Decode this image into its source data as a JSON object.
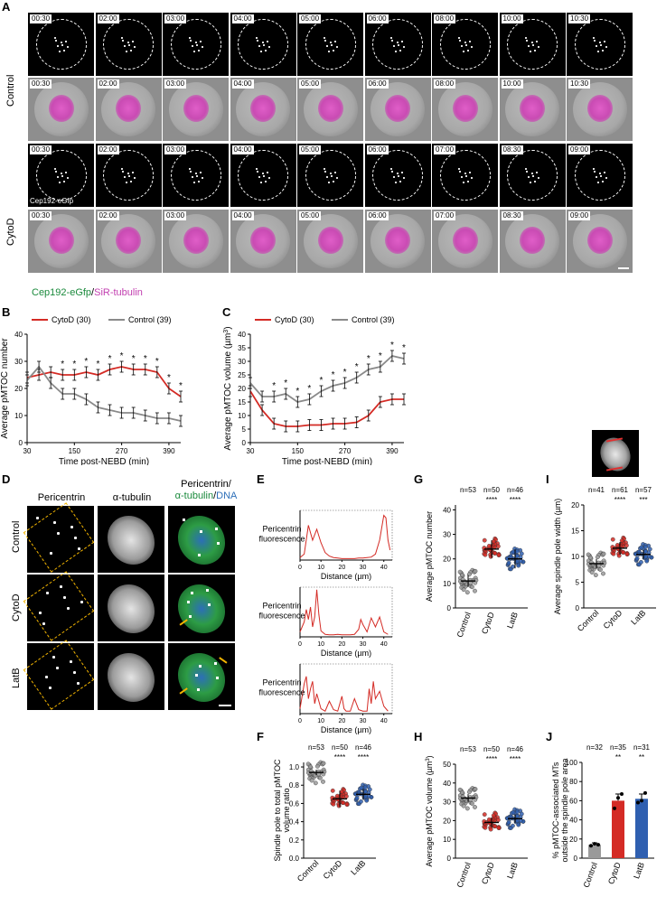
{
  "panel_letters": {
    "A": "A",
    "B": "B",
    "C": "C",
    "D": "D",
    "E": "E",
    "F": "F",
    "G": "G",
    "H": "H",
    "I": "I",
    "J": "J"
  },
  "panel_a": {
    "row_labels": {
      "control": "Control",
      "cytod": "CytoD"
    },
    "control_times": [
      "00:30",
      "02:00",
      "03:00",
      "04:00",
      "05:00",
      "06:00",
      "08:00",
      "10:00",
      "10:30"
    ],
    "cytod_times": [
      "00:30",
      "02:00",
      "03:00",
      "04:00",
      "05:00",
      "06:00",
      "07:00",
      "08:30",
      "09:00"
    ],
    "channel_label": "Cep192-eGfp",
    "legend_green": "Cep192-eGfp",
    "legend_sep": "/",
    "legend_magenta": "SiR-tubulin",
    "green_color": "#1a8a3c",
    "magenta_color": "#c23fb0"
  },
  "chart_data": [
    {
      "panel": "B",
      "type": "line",
      "ylabel": "Average pMTOC number",
      "xlabel": "Time post-NEBD (min)",
      "xticks": [
        30,
        150,
        270,
        390
      ],
      "yticks": [
        0,
        10,
        20,
        30,
        40
      ],
      "ylim": [
        0,
        40
      ],
      "xlim": [
        30,
        420
      ],
      "legend": [
        "CytoD (30)",
        "Control (39)"
      ],
      "x": [
        30,
        60,
        90,
        120,
        150,
        180,
        210,
        240,
        270,
        300,
        330,
        360,
        390,
        420
      ],
      "series": [
        {
          "name": "CytoD (30)",
          "color": "#d42b25",
          "values": [
            24,
            25,
            26,
            25,
            25,
            26,
            25,
            27,
            28,
            27,
            27,
            26,
            20,
            17
          ]
        },
        {
          "name": "Control (39)",
          "color": "#8a8a8a",
          "values": [
            23,
            28,
            22,
            18,
            18,
            16,
            13,
            12,
            11,
            11,
            10,
            9,
            9,
            8
          ]
        }
      ],
      "stars": [
        150,
        180,
        210,
        240,
        270,
        300,
        330,
        360,
        390,
        420,
        120
      ],
      "star_label": "*"
    },
    {
      "panel": "C",
      "type": "line",
      "ylabel": "Average pMTOC volume (µm³)",
      "ylabel_main": "Average pMTOC volume (µm",
      "ylabel_sup": "3",
      "ylabel_close": ")",
      "xlabel": "Time post-NEBD (min)",
      "xticks": [
        30,
        150,
        270,
        390
      ],
      "yticks": [
        0,
        5,
        10,
        15,
        20,
        25,
        30,
        35,
        40
      ],
      "ylim": [
        0,
        40
      ],
      "xlim": [
        30,
        420
      ],
      "legend": [
        "CytoD (30)",
        "Control (39)"
      ],
      "x": [
        30,
        60,
        90,
        120,
        150,
        180,
        210,
        240,
        270,
        300,
        330,
        360,
        390,
        420
      ],
      "series": [
        {
          "name": "CytoD (30)",
          "color": "#d42b25",
          "values": [
            19,
            12,
            7,
            6,
            6,
            6.5,
            6.5,
            7,
            7,
            7.5,
            10,
            15,
            16,
            16
          ]
        },
        {
          "name": "Control (39)",
          "color": "#8a8a8a",
          "values": [
            22,
            17,
            17,
            18,
            15,
            16,
            19,
            21,
            22,
            24,
            27,
            28,
            32,
            31
          ]
        }
      ],
      "stars": [
        90,
        120,
        150,
        180,
        210,
        240,
        270,
        300,
        330,
        360,
        390,
        420
      ],
      "star_label": "*"
    },
    {
      "panel": "E",
      "type": "line",
      "ylabel": "Pericentrin fluorescence",
      "ylabel_l1": "Pericentrin",
      "ylabel_l2": "fluorescence",
      "xlabel": "Distance (µm)",
      "xticks": [
        0,
        10,
        20,
        30,
        40
      ],
      "profiles": [
        {
          "row": "Control",
          "x": [
            0,
            2,
            4,
            6,
            8,
            10,
            12,
            14,
            16,
            18,
            20,
            22,
            24,
            26,
            28,
            30,
            32,
            34,
            36,
            38,
            40,
            41,
            42,
            43
          ],
          "y": [
            5,
            12,
            70,
            40,
            62,
            35,
            15,
            8,
            5,
            4,
            3,
            3,
            3,
            3,
            4,
            4,
            5,
            6,
            12,
            40,
            90,
            85,
            40,
            20
          ]
        },
        {
          "row": "CytoD",
          "x": [
            0,
            2,
            3,
            4,
            5,
            6,
            7,
            8,
            9,
            10,
            12,
            14,
            16,
            18,
            20,
            22,
            24,
            26,
            28,
            29,
            30,
            32,
            34,
            36,
            38,
            40,
            42
          ],
          "y": [
            10,
            30,
            55,
            35,
            60,
            20,
            40,
            95,
            45,
            12,
            5,
            4,
            4,
            5,
            4,
            4,
            4,
            5,
            15,
            35,
            25,
            10,
            38,
            20,
            40,
            10,
            5
          ]
        },
        {
          "row": "LatB",
          "x": [
            0,
            2,
            3,
            4,
            5,
            6,
            7,
            8,
            10,
            12,
            14,
            16,
            18,
            20,
            21,
            22,
            24,
            26,
            28,
            30,
            32,
            33,
            34,
            35,
            36,
            38,
            40,
            42
          ],
          "y": [
            10,
            60,
            75,
            30,
            50,
            65,
            20,
            40,
            10,
            5,
            25,
            8,
            5,
            35,
            10,
            5,
            5,
            30,
            8,
            5,
            5,
            50,
            20,
            65,
            30,
            45,
            15,
            5
          ]
        }
      ]
    },
    {
      "panel": "F",
      "type": "scatter",
      "ylabel": "Spindle pole to total pMTOC volume ratio",
      "ylabel_l1": "Spindle pole to total pMTOC",
      "ylabel_l2": "volume ratio",
      "categories": [
        "Control",
        "CytoD",
        "LatB"
      ],
      "n_labels": [
        "n=53",
        "n=50",
        "n=46"
      ],
      "significance": [
        "",
        "****",
        "****"
      ],
      "yticks": [
        0.0,
        0.2,
        0.4,
        0.6,
        0.8,
        1.0
      ],
      "ylim": [
        0,
        1.05
      ],
      "means": [
        0.94,
        0.65,
        0.7
      ],
      "sems": [
        0.01,
        0.03,
        0.02
      ],
      "colors": [
        "#9a9a9a",
        "#d42b25",
        "#2f5fb0"
      ]
    },
    {
      "panel": "G",
      "type": "scatter",
      "ylabel": "Average pMTOC number",
      "categories": [
        "Control",
        "CytoD",
        "LatB"
      ],
      "n_labels": [
        "n=53",
        "n=50",
        "n=46"
      ],
      "significance": [
        "",
        "****",
        "****"
      ],
      "yticks": [
        0,
        10,
        20,
        30,
        40
      ],
      "ylim": [
        0,
        42
      ],
      "means": [
        11,
        24,
        20
      ],
      "sems": [
        0.8,
        1.2,
        1.3
      ],
      "colors": [
        "#9a9a9a",
        "#d42b25",
        "#2f5fb0"
      ]
    },
    {
      "panel": "H",
      "type": "scatter",
      "ylabel": "Average pMTOC volume (µm³)",
      "ylabel_main": "Average pMTOC volume (µm",
      "ylabel_sup": "3",
      "ylabel_close": ")",
      "categories": [
        "Control",
        "CytoD",
        "LatB"
      ],
      "n_labels": [
        "n=53",
        "n=50",
        "n=46"
      ],
      "significance": [
        "",
        "****",
        "****"
      ],
      "yticks": [
        0,
        10,
        20,
        30,
        40,
        50
      ],
      "ylim": [
        0,
        50
      ],
      "means": [
        32,
        19,
        21
      ],
      "sems": [
        0.7,
        0.8,
        0.8
      ],
      "colors": [
        "#9a9a9a",
        "#d42b25",
        "#2f5fb0"
      ]
    },
    {
      "panel": "I",
      "type": "scatter",
      "ylabel": "Average spindle pole width (µm)",
      "categories": [
        "Control",
        "CytoD",
        "LatB"
      ],
      "n_labels": [
        "n=41",
        "n=61",
        "n=57"
      ],
      "significance": [
        "",
        "****",
        "***"
      ],
      "yticks": [
        0,
        5,
        10,
        15,
        20
      ],
      "ylim": [
        0,
        20
      ],
      "means": [
        8.6,
        11.6,
        10.4
      ],
      "sems": [
        0.3,
        0.4,
        0.3
      ],
      "colors": [
        "#9a9a9a",
        "#d42b25",
        "#2f5fb0"
      ]
    },
    {
      "panel": "J",
      "type": "bar",
      "ylabel": "% pMTOC-associated MTs outside the spindle pole area",
      "ylabel_l1": "% pMTOC-associated MTs",
      "ylabel_l2": "outside the spindle pole area",
      "categories": [
        "Control",
        "CytoD",
        "LatB"
      ],
      "n_labels": [
        "n=32",
        "n=35",
        "n=31"
      ],
      "significance": [
        "",
        "**",
        "**"
      ],
      "yticks": [
        0,
        20,
        40,
        60,
        80,
        100
      ],
      "ylim": [
        0,
        100
      ],
      "values": [
        14,
        60,
        62
      ],
      "errors": [
        2,
        7,
        5
      ],
      "points": [
        [
          13,
          15,
          14
        ],
        [
          52,
          63,
          67
        ],
        [
          58,
          60,
          68
        ]
      ],
      "colors": [
        "#9a9a9a",
        "#d42b25",
        "#2f5fb0"
      ]
    }
  ],
  "panel_d": {
    "col_headers": [
      "Pericentrin",
      "α-tubulin"
    ],
    "merge_header_l1": "Pericentrin/",
    "merge_header_green": "α-tubulin",
    "merge_header_sep": "/",
    "merge_header_blue": "DNA",
    "row_labels": [
      "Control",
      "CytoD",
      "LatB"
    ]
  }
}
